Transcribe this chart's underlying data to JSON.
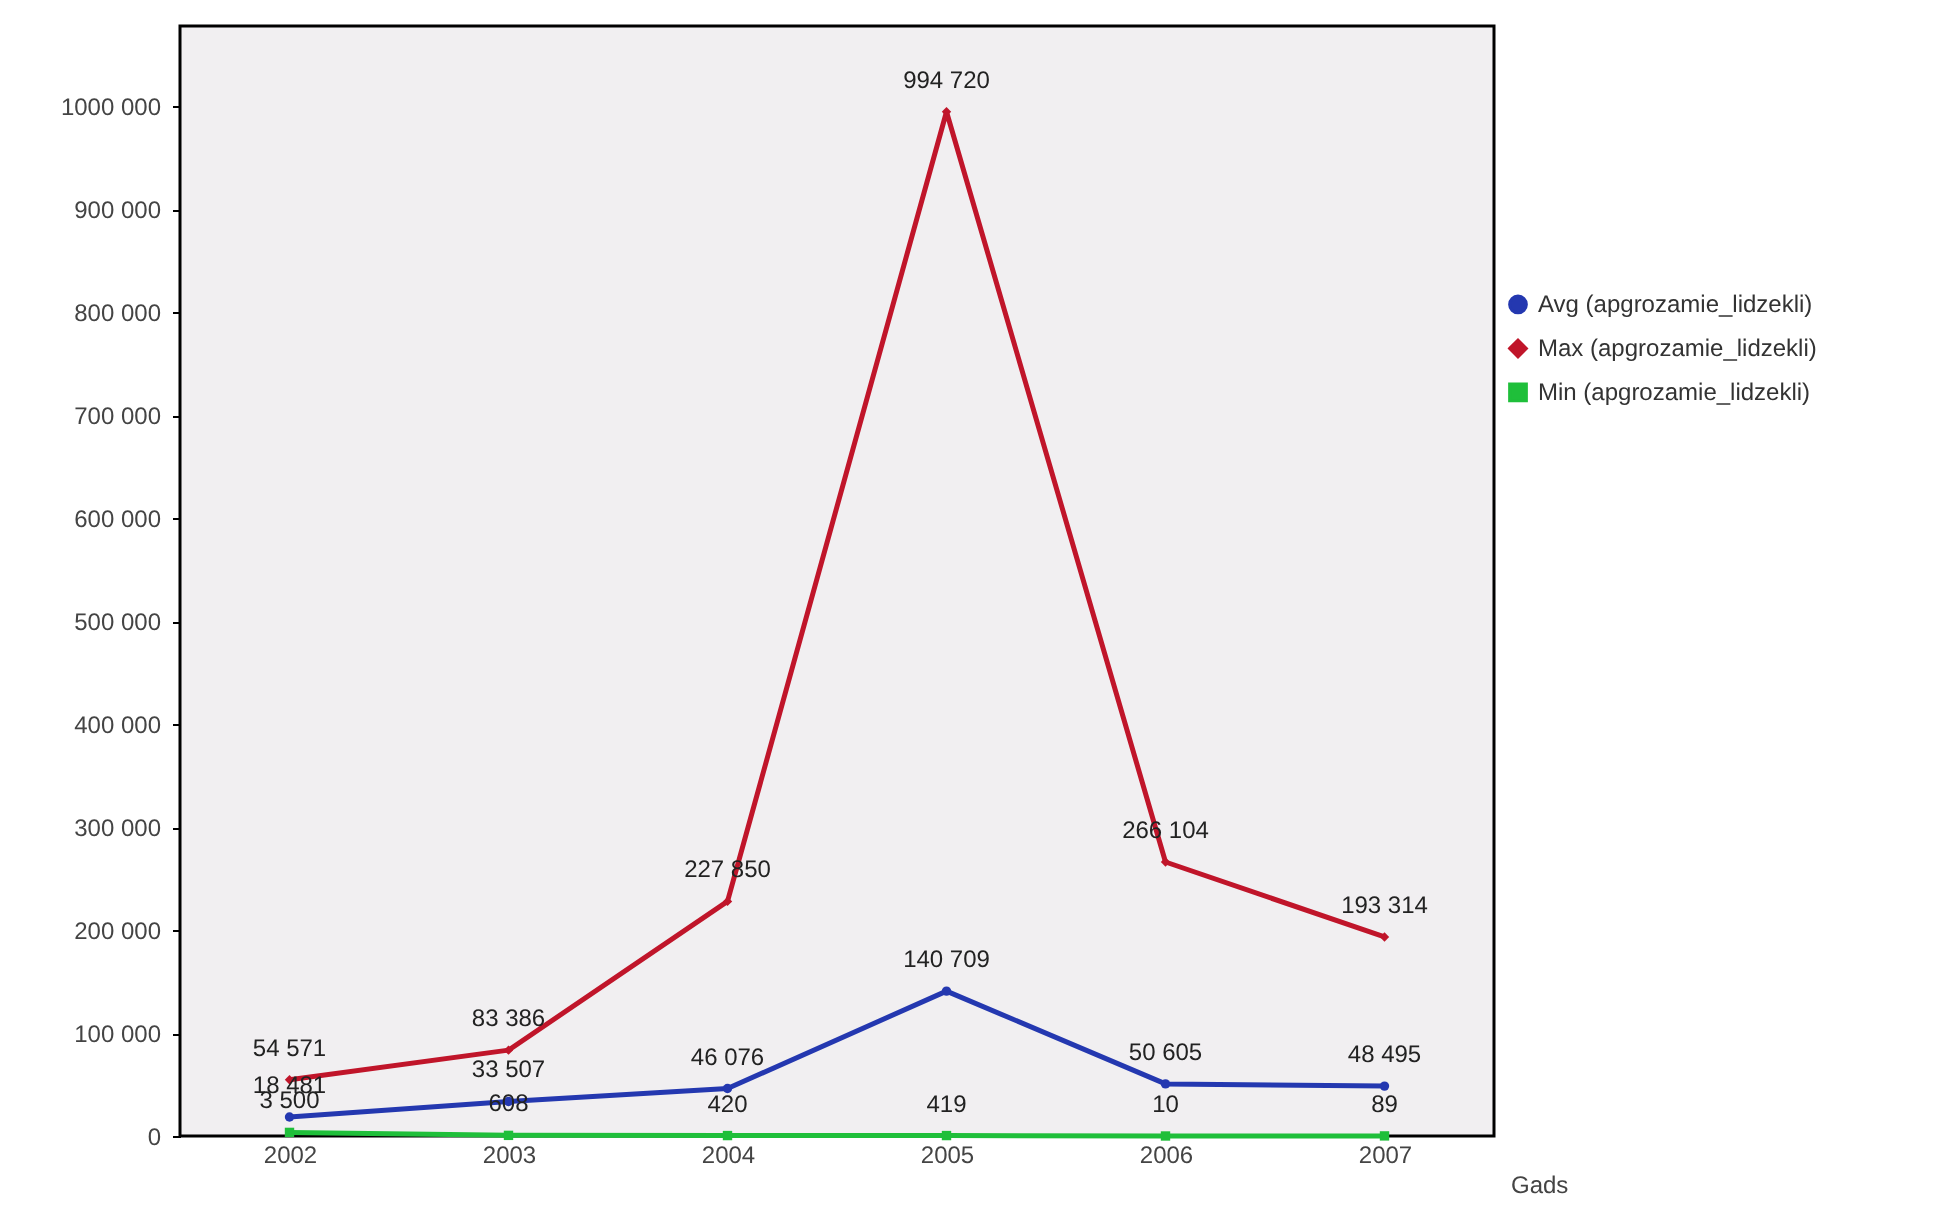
{
  "chart_data": {
    "type": "line",
    "xlabel": "Gads",
    "categories": [
      "2002",
      "2003",
      "2004",
      "2005",
      "2006",
      "2007"
    ],
    "series": [
      {
        "name": "Avg (apgrozamie_lidzekli)",
        "color": "#2438b0",
        "marker": "circle",
        "values": [
          18481,
          33507,
          46076,
          140709,
          50605,
          48495
        ],
        "value_labels": [
          "18 481",
          "33 507",
          "46 076",
          "140 709",
          "50 605",
          "48 495"
        ]
      },
      {
        "name": "Max (apgrozamie_lidzekli)",
        "color": "#c0152a",
        "marker": "diamond",
        "values": [
          54571,
          83386,
          227850,
          994720,
          266104,
          193314
        ],
        "value_labels": [
          "54 571",
          "83 386",
          "227 850",
          "994 720",
          "266 104",
          "193 314"
        ]
      },
      {
        "name": "Min (apgrozamie_lidzekli)",
        "color": "#1fbf3a",
        "marker": "square",
        "values": [
          3500,
          608,
          420,
          419,
          10,
          89
        ],
        "value_labels": [
          "3 500",
          "608",
          "420",
          "419",
          "10",
          "89"
        ]
      }
    ],
    "ylim": [
      0,
      1078000
    ],
    "yticks": [
      0,
      {
        "value": 100000,
        "label": "100 000"
      },
      {
        "value": 200000,
        "label": "200 000"
      },
      {
        "value": 300000,
        "label": "300 000"
      },
      {
        "value": 400000,
        "label": "400 000"
      },
      {
        "value": 500000,
        "label": "500 000"
      },
      {
        "value": 600000,
        "label": "600 000"
      },
      {
        "value": 700000,
        "label": "700 000"
      },
      {
        "value": 800000,
        "label": "800 000"
      },
      {
        "value": 900000,
        "label": "900 000"
      },
      {
        "value": 1000000,
        "label": "1000 000"
      }
    ],
    "grid": false,
    "legend": "right"
  }
}
